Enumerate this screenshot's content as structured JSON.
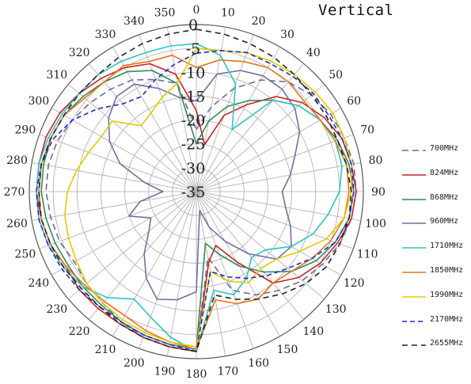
{
  "chart_data": {
    "type": "polar-line",
    "title": "Vertical",
    "angles": [
      0,
      10,
      20,
      30,
      40,
      50,
      60,
      70,
      80,
      90,
      100,
      110,
      120,
      130,
      140,
      150,
      160,
      170,
      180,
      190,
      200,
      210,
      220,
      230,
      240,
      250,
      260,
      270,
      280,
      290,
      300,
      310,
      320,
      330,
      340,
      350
    ],
    "angle_labels": [
      "0",
      "10",
      "20",
      "30",
      "40",
      "50",
      "60",
      "70",
      "80",
      "90",
      "100",
      "110",
      "120",
      "130",
      "140",
      "150",
      "160",
      "170",
      "180",
      "190",
      "200",
      "210",
      "220",
      "230",
      "240",
      "250",
      "260",
      "270",
      "280",
      "290",
      "300",
      "310",
      "320",
      "330",
      "340",
      "350"
    ],
    "radial_range": [
      -35,
      0
    ],
    "radial_ticks": [
      0,
      -5,
      -10,
      -15,
      -20,
      -25,
      -30,
      -35
    ],
    "radial_tick_labels": [
      "0",
      "-5",
      "-10",
      "-15",
      "-20",
      "-25",
      "-30",
      "-35"
    ],
    "legend_position": "right",
    "grid": true,
    "series": [
      {
        "name": "700MHz",
        "color": "#6b6b9e",
        "dash": "8,5",
        "values": [
          -22,
          -17,
          -12,
          -8,
          -5,
          -3.5,
          -2.5,
          -2,
          -1.5,
          -1.5,
          -2,
          -3,
          -4.5,
          -6,
          -8,
          -10,
          -13,
          -21,
          -1.5,
          -2,
          -2.5,
          -3.5,
          -4.5,
          -5,
          -5.5,
          -4.5,
          -4,
          -3.5,
          -3.5,
          -4,
          -5,
          -6,
          -7,
          -8,
          -10,
          -12
        ]
      },
      {
        "name": "824MHz",
        "color": "#cc2222",
        "dash": "",
        "values": [
          -18,
          -25,
          -18,
          -14,
          -9,
          -6,
          -4,
          -2.5,
          -2,
          -1.5,
          -2,
          -3.5,
          -5,
          -7,
          -10,
          -18,
          -23,
          -20,
          -1.5,
          -2,
          -2.5,
          -3,
          -3,
          -3,
          -3.5,
          -2.5,
          -2,
          -1.5,
          -1.5,
          -1.5,
          -2,
          -3,
          -4,
          -5,
          -6.5,
          -10
        ]
      },
      {
        "name": "868MHz",
        "color": "#2e8b57",
        "dash": "",
        "values": [
          -25,
          -20,
          -16,
          -13,
          -10,
          -7,
          -5,
          -3.5,
          -2.5,
          -2,
          -2.5,
          -4,
          -6,
          -9,
          -13,
          -17,
          -21,
          -24,
          -2,
          -2.5,
          -3,
          -3.5,
          -4,
          -4,
          -4,
          -3.5,
          -3,
          -2.5,
          -2.5,
          -2.5,
          -3,
          -4,
          -5,
          -6,
          -8,
          -12
        ]
      },
      {
        "name": "960MHz",
        "color": "#7070a0",
        "dash": "",
        "values": [
          -16,
          -10,
          -8,
          -7,
          -7,
          -8,
          -10,
          -13,
          -15,
          -17,
          -16,
          -14,
          -12,
          -13,
          -18,
          -23,
          -27,
          -31,
          -14,
          -12,
          -11,
          -14,
          -18,
          -22,
          -24,
          -20,
          -23,
          -28,
          -24,
          -18,
          -14,
          -11,
          -9,
          -9,
          -12,
          -15
        ]
      },
      {
        "name": "1710MHz",
        "color": "#2ec4c4",
        "dash": "",
        "values": [
          -4,
          -6,
          -11,
          -20,
          -10,
          -7,
          -5,
          -4,
          -4,
          -5,
          -7,
          -9,
          -12,
          -16,
          -17,
          -14,
          -12,
          -14,
          -1.5,
          -4,
          -7,
          -9,
          -6,
          -4,
          -3,
          -2,
          -1.5,
          -1.5,
          -1.5,
          -2,
          -2.5,
          -3,
          -3,
          -3.5,
          -4,
          -4
        ]
      },
      {
        "name": "1850MHz",
        "color": "#e8741a",
        "dash": "",
        "values": [
          -9,
          -7,
          -6,
          -5,
          -5,
          -5.5,
          -5,
          -4,
          -3,
          -3,
          -3.5,
          -5,
          -7,
          -9,
          -10,
          -9,
          -10,
          -12,
          -2,
          -3,
          -4,
          -5,
          -5,
          -4.5,
          -3.5,
          -2.5,
          -2,
          -2,
          -2,
          -2.5,
          -3,
          -4.5,
          -5,
          -4.5,
          -6,
          -6
        ]
      },
      {
        "name": "1990MHz",
        "color": "#e8c800",
        "dash": "",
        "values": [
          -5,
          -5,
          -4,
          -3.5,
          -3,
          -2.5,
          -2,
          -2,
          -2,
          -2.5,
          -3.5,
          -6,
          -10,
          -13,
          -14,
          -13,
          -15,
          -18,
          -2.5,
          -3,
          -3.5,
          -4,
          -4.5,
          -5,
          -6,
          -6.5,
          -7,
          -8,
          -9.5,
          -11,
          -12,
          -12,
          -17,
          -16,
          -14,
          -12
        ]
      },
      {
        "name": "2170MHz",
        "color": "#1a2acc",
        "dash": "6,4",
        "values": [
          -6,
          -5,
          -4,
          -4,
          -3.5,
          -3,
          -3,
          -2.5,
          -2,
          -2,
          -2.5,
          -4,
          -7,
          -10,
          -12,
          -14,
          -16,
          -18,
          -1.5,
          -2.5,
          -3,
          -3.5,
          -3.5,
          -3,
          -2.5,
          -2,
          -1.5,
          -1.5,
          -2,
          -3,
          -5,
          -8,
          -11,
          -12,
          -10,
          -8
        ]
      },
      {
        "name": "2655MHz",
        "color": "#222222",
        "dash": "7,5",
        "values": [
          -1,
          -1.5,
          -2,
          -2.5,
          -3,
          -3.5,
          -3.5,
          -3.5,
          -3,
          -2.5,
          -2.5,
          -3,
          -3.5,
          -5,
          -7,
          -9,
          -11,
          -13,
          -1.5,
          -2,
          -2.5,
          -3,
          -3.5,
          -3.5,
          -3,
          -2.5,
          -2,
          -2,
          -2,
          -2.5,
          -3,
          -3,
          -3,
          -2.5,
          -2,
          -1.5
        ]
      }
    ]
  }
}
